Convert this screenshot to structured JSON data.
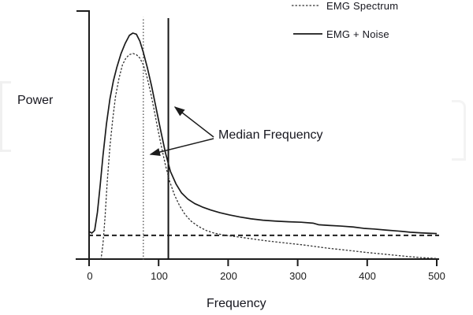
{
  "figure": {
    "ylabel": "Power",
    "xlabel": "Frequency",
    "annotation_label": "Median Frequency",
    "legend": [
      {
        "label": "EMG Spectrum",
        "style": "dotted"
      },
      {
        "label": "EMG + Noise",
        "style": "solid"
      }
    ],
    "x_tick_labels": [
      "0",
      "100",
      "200",
      "300",
      "400",
      "500"
    ]
  },
  "chart_data": {
    "type": "line",
    "title": "",
    "xlabel": "Frequency",
    "ylabel": "Power",
    "xlim": [
      0,
      500
    ],
    "ylim": [
      0,
      1.07
    ],
    "x_ticks": [
      0,
      100,
      200,
      300,
      400,
      500
    ],
    "y_ticks": [],
    "grid": false,
    "legend_position": "top-right",
    "series": [
      {
        "name": "EMG Spectrum",
        "style": "dotted",
        "points": [
          [
            17,
            0
          ],
          [
            20,
            0.07
          ],
          [
            23,
            0.19
          ],
          [
            26,
            0.34
          ],
          [
            30,
            0.5
          ],
          [
            34,
            0.62
          ],
          [
            38,
            0.72
          ],
          [
            43,
            0.8
          ],
          [
            48,
            0.86
          ],
          [
            53,
            0.89
          ],
          [
            58,
            0.905
          ],
          [
            63,
            0.91
          ],
          [
            68,
            0.905
          ],
          [
            73,
            0.89
          ],
          [
            78,
            0.86
          ],
          [
            83,
            0.81
          ],
          [
            88,
            0.745
          ],
          [
            93,
            0.67
          ],
          [
            98,
            0.59
          ],
          [
            104,
            0.5
          ],
          [
            110,
            0.415
          ],
          [
            116,
            0.345
          ],
          [
            123,
            0.285
          ],
          [
            130,
            0.24
          ],
          [
            138,
            0.2
          ],
          [
            147,
            0.17
          ],
          [
            157,
            0.148
          ],
          [
            168,
            0.13
          ],
          [
            180,
            0.118
          ],
          [
            193,
            0.11
          ],
          [
            207,
            0.104
          ],
          [
            222,
            0.098
          ],
          [
            238,
            0.091
          ],
          [
            255,
            0.084
          ],
          [
            272,
            0.078
          ],
          [
            290,
            0.072
          ],
          [
            308,
            0.066
          ],
          [
            325,
            0.059
          ],
          [
            342,
            0.052
          ],
          [
            360,
            0.046
          ],
          [
            378,
            0.04
          ],
          [
            398,
            0.033
          ],
          [
            418,
            0.027
          ],
          [
            438,
            0.021
          ],
          [
            458,
            0.015
          ],
          [
            478,
            0.01
          ],
          [
            500,
            0.006
          ]
        ]
      },
      {
        "name": "EMG + Noise",
        "style": "solid",
        "points": [
          [
            0,
            0.125
          ],
          [
            4,
            0.118
          ],
          [
            8,
            0.13
          ],
          [
            12,
            0.21
          ],
          [
            16,
            0.33
          ],
          [
            20,
            0.46
          ],
          [
            25,
            0.6
          ],
          [
            30,
            0.71
          ],
          [
            35,
            0.79
          ],
          [
            40,
            0.85
          ],
          [
            46,
            0.91
          ],
          [
            52,
            0.955
          ],
          [
            58,
            0.99
          ],
          [
            63,
            1.0
          ],
          [
            68,
            0.995
          ],
          [
            73,
            0.965
          ],
          [
            78,
            0.915
          ],
          [
            84,
            0.845
          ],
          [
            90,
            0.765
          ],
          [
            96,
            0.675
          ],
          [
            103,
            0.57
          ],
          [
            110,
            0.47
          ],
          [
            117,
            0.39
          ],
          [
            125,
            0.335
          ],
          [
            133,
            0.295
          ],
          [
            142,
            0.268
          ],
          [
            152,
            0.248
          ],
          [
            163,
            0.233
          ],
          [
            175,
            0.22
          ],
          [
            188,
            0.208
          ],
          [
            202,
            0.198
          ],
          [
            217,
            0.189
          ],
          [
            233,
            0.181
          ],
          [
            250,
            0.175
          ],
          [
            268,
            0.171
          ],
          [
            287,
            0.168
          ],
          [
            305,
            0.166
          ],
          [
            322,
            0.162
          ],
          [
            330,
            0.155
          ],
          [
            345,
            0.152
          ],
          [
            362,
            0.149
          ],
          [
            380,
            0.145
          ],
          [
            395,
            0.139
          ],
          [
            410,
            0.136
          ],
          [
            428,
            0.131
          ],
          [
            445,
            0.127
          ],
          [
            462,
            0.122
          ],
          [
            478,
            0.119
          ],
          [
            500,
            0.116
          ]
        ]
      }
    ],
    "reference_lines": [
      {
        "id": "noise-floor",
        "orientation": "horizontal",
        "power": 0.108,
        "style": "dashed",
        "meaning": "noise level"
      },
      {
        "id": "median-emg",
        "orientation": "vertical",
        "frequency": 78,
        "top_power": 1.07,
        "style": "dotted",
        "meaning": "median frequency of EMG Spectrum"
      },
      {
        "id": "median-emg-noise",
        "orientation": "vertical",
        "frequency": 114,
        "top_power": 1.066,
        "style": "solid",
        "meaning": "median frequency of EMG + Noise"
      }
    ],
    "annotations": [
      {
        "text": "Median Frequency",
        "points_to": [
          "median-emg",
          "median-emg-noise"
        ]
      }
    ]
  }
}
